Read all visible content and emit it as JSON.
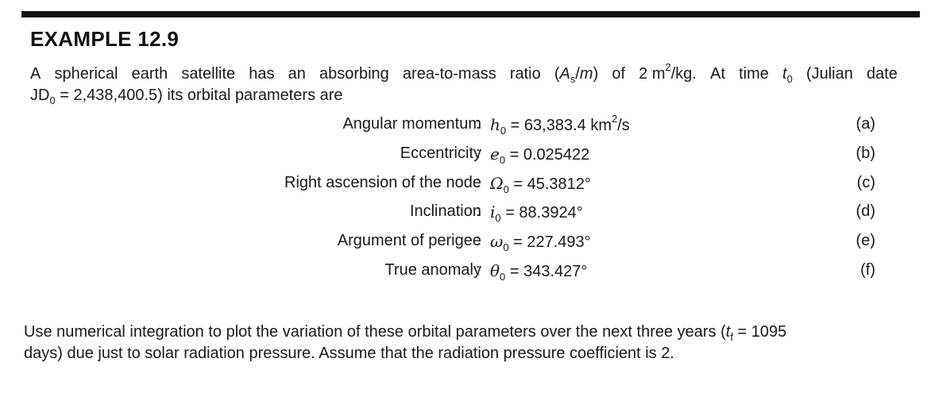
{
  "example": {
    "title": "EXAMPLE 12.9"
  },
  "intro": {
    "line1_words": [
      "A",
      "spherical",
      "earth",
      "satellite",
      "has",
      "an",
      "absorbing",
      "area-to-mass",
      "ratio",
      "(",
      "A",
      "s",
      "/",
      "m",
      ")",
      "of",
      "2 m",
      "2",
      "/kg.",
      "At",
      "time",
      "t",
      "0",
      "(Julian",
      "date"
    ],
    "a_symbol": "A",
    "a_sub": "s",
    "slash": "/",
    "m_symbol": "m",
    "ratio_value": "2 m",
    "ratio_exp": "2",
    "ratio_unit": "/kg.",
    "time_t": "t",
    "time_sub": "0",
    "jd_symbol": "JD",
    "jd_sub": "0",
    "jd_value": " = 2,438,400.5) its orbital parameters are"
  },
  "equations": [
    {
      "label": "Angular momentum",
      "symbol": "h",
      "sub": "0",
      "value": " = 63,383.4 km",
      "sup": "2",
      "unit": "/s",
      "tag": "(a)"
    },
    {
      "label": "Eccentricity",
      "symbol": "e",
      "sub": "0",
      "value": " = 0.025422",
      "sup": "",
      "unit": "",
      "tag": "(b)"
    },
    {
      "label": "Right ascension of the node",
      "symbol": "Ω",
      "sub": "0",
      "value": " = 45.3812°",
      "sup": "",
      "unit": "",
      "tag": "(c)"
    },
    {
      "label": "Inclination",
      "symbol": "i",
      "sub": "0",
      "value": " = 88.3924°",
      "sup": "",
      "unit": "",
      "tag": "(d)"
    },
    {
      "label": "Argument of perigee",
      "symbol": "ω",
      "sub": "0",
      "value": " = 227.493°",
      "sup": "",
      "unit": "",
      "tag": "(e)"
    },
    {
      "label": "True anomaly",
      "symbol": "θ",
      "sub": "0",
      "value": " = 343.427°",
      "sup": "",
      "unit": "",
      "tag": "(f)"
    }
  ],
  "colon": ":",
  "closing": {
    "text_before": "Use numerical integration to plot the variation of these orbital parameters over the next three years (",
    "tf_symbol": "t",
    "tf_sub": "f",
    "text_after_line1": " = 1095",
    "line2": "days) due just to solar radiation pressure. Assume that the radiation pressure coefficient is 2."
  }
}
